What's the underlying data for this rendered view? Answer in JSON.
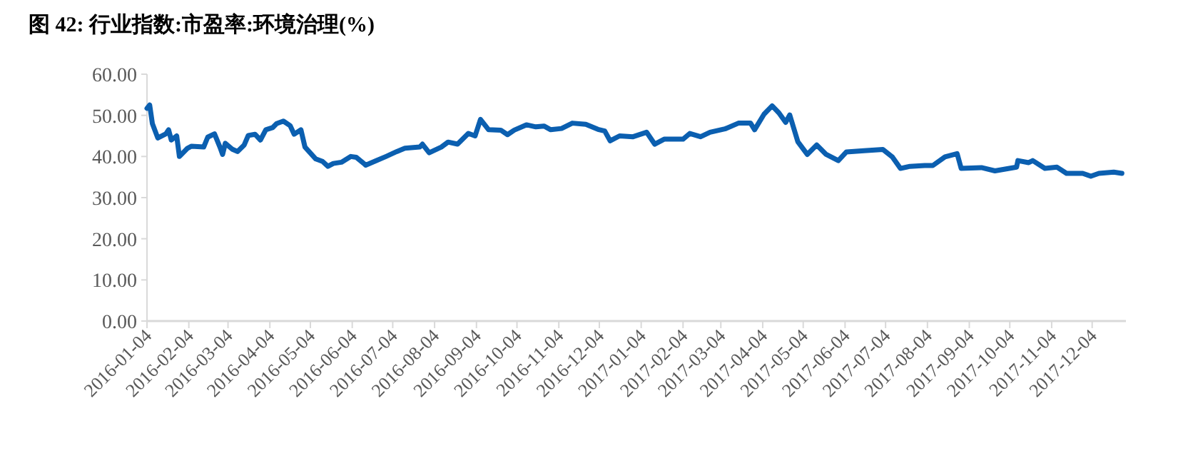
{
  "chart_data": {
    "type": "line",
    "title": "图 42: 行业指数:市盈率:环境治理(%)",
    "x": [
      "2016-01-04",
      "2016-01-06",
      "2016-01-08",
      "2016-01-12",
      "2016-01-18",
      "2016-01-20",
      "2016-01-22",
      "2016-01-26",
      "2016-01-28",
      "2016-02-03",
      "2016-02-06",
      "2016-02-15",
      "2016-02-18",
      "2016-02-23",
      "2016-02-27",
      "2016-02-29",
      "2016-03-02",
      "2016-03-07",
      "2016-03-11",
      "2016-03-16",
      "2016-03-19",
      "2016-03-24",
      "2016-03-28",
      "2016-04-01",
      "2016-04-06",
      "2016-04-09",
      "2016-04-14",
      "2016-04-19",
      "2016-04-22",
      "2016-04-27",
      "2016-04-30",
      "2016-05-08",
      "2016-05-13",
      "2016-05-17",
      "2016-05-21",
      "2016-05-27",
      "2016-06-03",
      "2016-06-07",
      "2016-06-14",
      "2016-06-22",
      "2016-06-29",
      "2016-07-07",
      "2016-07-13",
      "2016-07-24",
      "2016-07-26",
      "2016-07-31",
      "2016-08-09",
      "2016-08-14",
      "2016-08-21",
      "2016-08-29",
      "2016-09-03",
      "2016-09-07",
      "2016-09-13",
      "2016-09-22",
      "2016-09-27",
      "2016-10-02",
      "2016-10-11",
      "2016-10-18",
      "2016-10-24",
      "2016-10-29",
      "2016-11-06",
      "2016-11-14",
      "2016-11-24",
      "2016-12-03",
      "2016-12-08",
      "2016-12-12",
      "2016-12-19",
      "2016-12-29",
      "2017-01-08",
      "2017-01-14",
      "2017-01-21",
      "2017-02-04",
      "2017-02-09",
      "2017-02-17",
      "2017-02-24",
      "2017-03-07",
      "2017-03-17",
      "2017-03-26",
      "2017-03-29",
      "2017-04-05",
      "2017-04-11",
      "2017-04-16",
      "2017-04-21",
      "2017-04-24",
      "2017-04-30",
      "2017-05-07",
      "2017-05-14",
      "2017-05-21",
      "2017-05-30",
      "2017-06-05",
      "2017-06-18",
      "2017-07-02",
      "2017-07-09",
      "2017-07-15",
      "2017-07-22",
      "2017-08-02",
      "2017-08-08",
      "2017-08-17",
      "2017-08-26",
      "2017-08-29",
      "2017-09-13",
      "2017-09-23",
      "2017-10-09",
      "2017-10-10",
      "2017-10-18",
      "2017-10-21",
      "2017-10-30",
      "2017-11-08",
      "2017-11-15",
      "2017-11-27",
      "2017-12-03",
      "2017-12-09",
      "2017-12-20",
      "2017-12-26"
    ],
    "values": [
      51.7,
      52.5,
      48,
      44.5,
      45.5,
      46.5,
      44,
      45,
      40,
      42,
      42.5,
      42.3,
      44.7,
      45.5,
      42.3,
      40.5,
      43.2,
      41.8,
      41.2,
      42.8,
      45.1,
      45.4,
      44,
      46.5,
      47,
      48,
      48.6,
      47.5,
      45.4,
      46.5,
      42.3,
      39.4,
      38.8,
      37.6,
      38.3,
      38.6,
      40,
      39.8,
      37.9,
      39,
      40,
      41.2,
      42,
      42.3,
      43,
      40.9,
      42.3,
      43.5,
      43,
      45.6,
      45,
      49,
      46.5,
      46.4,
      45.3,
      46.4,
      47.7,
      47.2,
      47.4,
      46.5,
      46.8,
      48.1,
      47.8,
      46.6,
      46.2,
      43.8,
      45,
      44.8,
      45.9,
      43,
      44.2,
      44.2,
      45.6,
      44.8,
      45.9,
      46.7,
      48.1,
      48.1,
      46.5,
      50.3,
      52.3,
      50.6,
      48.3,
      50.1,
      43.6,
      40.5,
      42.8,
      40.5,
      39,
      41.1,
      41.4,
      41.7,
      39.9,
      37.1,
      37.6,
      37.8,
      37.8,
      39.9,
      40.7,
      37.1,
      37.3,
      36.5,
      37.4,
      39,
      38.5,
      39,
      37.1,
      37.4,
      35.9,
      35.9,
      35.2,
      35.9,
      36.2,
      35.9
    ],
    "color": "#0b5fb0",
    "xlim": [
      "2016-01-04",
      "2017-12-29"
    ],
    "xticks": [
      "2016-01-04",
      "2016-02-04",
      "2016-03-04",
      "2016-04-04",
      "2016-05-04",
      "2016-06-04",
      "2016-07-04",
      "2016-08-04",
      "2016-09-04",
      "2016-10-04",
      "2016-11-04",
      "2016-12-04",
      "2017-01-04",
      "2017-02-04",
      "2017-03-04",
      "2017-04-04",
      "2017-05-04",
      "2017-06-04",
      "2017-07-04",
      "2017-08-04",
      "2017-09-04",
      "2017-10-04",
      "2017-11-04",
      "2017-12-04"
    ],
    "ylim": [
      0,
      60
    ],
    "yticks": [
      {
        "value": 0,
        "label": "0.00"
      },
      {
        "value": 10,
        "label": "10.00"
      },
      {
        "value": 20,
        "label": "20.00"
      },
      {
        "value": 30,
        "label": "30.00"
      },
      {
        "value": 40,
        "label": "40.00"
      },
      {
        "value": 50,
        "label": "50.00"
      },
      {
        "value": 60,
        "label": "60.00"
      }
    ],
    "grid": false,
    "marker": "none",
    "line_style": "solid"
  }
}
